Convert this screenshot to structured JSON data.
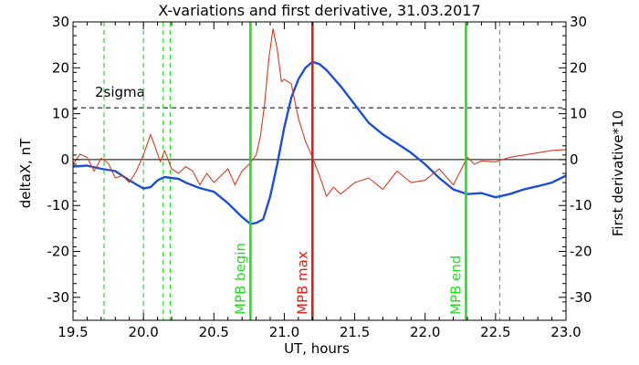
{
  "chart_data": {
    "type": "line",
    "title": "X-variations and first derivative, 31.03.2017",
    "xlabel": "UT, hours",
    "ylabel_left": "deltaX, nT",
    "ylabel_right": "First derivative*10",
    "xlim": [
      19.5,
      23.0
    ],
    "ylim": [
      -35,
      30
    ],
    "x_ticks": [
      19.5,
      20.0,
      20.5,
      21.0,
      21.5,
      22.0,
      22.5,
      23.0
    ],
    "x_tick_labels": [
      "19.5",
      "20.0",
      "20.5",
      "21.0",
      "21.5",
      "22.0",
      "22.5",
      "23.0"
    ],
    "y_ticks": [
      -30,
      -20,
      -10,
      0,
      10,
      20,
      30
    ],
    "y_tick_labels": [
      "-30",
      "-20",
      "-10",
      "0",
      "10",
      "20",
      "30"
    ],
    "grid": false,
    "colors": {
      "deltaX": "#1a4fd6",
      "derivative": "#d63a1f",
      "mpb": "#22dd22",
      "max": "#e02010",
      "left_label": "#1a4fd6",
      "right_label": "#d63a1f"
    },
    "threshold": {
      "value": 11.3,
      "label": "2sigma"
    },
    "zero_line": 0,
    "vertical_markers": [
      {
        "x": 20.76,
        "label": "MPB begin",
        "color": "#22dd22"
      },
      {
        "x": 21.2,
        "label": "MPB max",
        "color": "#e02010"
      },
      {
        "x": 22.29,
        "label": "MPB end",
        "color": "#22dd22"
      }
    ],
    "dashed_markers": [
      19.72,
      20.0,
      20.14,
      20.19,
      22.53
    ],
    "series": [
      {
        "key": "deltaX",
        "x": [
          19.5,
          19.6,
          19.7,
          19.8,
          19.9,
          20.0,
          20.05,
          20.1,
          20.15,
          20.2,
          20.25,
          20.3,
          20.4,
          20.5,
          20.6,
          20.7,
          20.76,
          20.8,
          20.85,
          20.9,
          20.95,
          21.0,
          21.05,
          21.1,
          21.15,
          21.2,
          21.25,
          21.3,
          21.4,
          21.5,
          21.6,
          21.7,
          21.8,
          21.9,
          22.0,
          22.1,
          22.2,
          22.3,
          22.4,
          22.5,
          22.6,
          22.7,
          22.8,
          22.9,
          23.0
        ],
        "values": [
          -1.5,
          -1.3,
          -2.0,
          -2.5,
          -4.5,
          -6.3,
          -6.0,
          -4.5,
          -3.8,
          -4.0,
          -4.2,
          -5.0,
          -6.2,
          -7.0,
          -9.5,
          -12.5,
          -14.0,
          -13.8,
          -13.0,
          -8.0,
          -1.0,
          7.0,
          13.5,
          17.5,
          20.0,
          21.3,
          20.8,
          19.5,
          16.0,
          12.0,
          8.0,
          5.5,
          3.5,
          1.5,
          -1.0,
          -4.0,
          -6.5,
          -7.5,
          -7.3,
          -8.2,
          -7.5,
          -6.5,
          -5.8,
          -5.0,
          -3.5
        ]
      },
      {
        "key": "derivative",
        "x": [
          19.5,
          19.55,
          19.6,
          19.65,
          19.7,
          19.75,
          19.8,
          19.85,
          19.9,
          19.95,
          20.0,
          20.05,
          20.08,
          20.12,
          20.15,
          20.2,
          20.25,
          20.3,
          20.35,
          20.4,
          20.45,
          20.5,
          20.55,
          20.6,
          20.65,
          20.7,
          20.75,
          20.8,
          20.83,
          20.86,
          20.89,
          20.92,
          20.95,
          20.98,
          21.0,
          21.05,
          21.1,
          21.15,
          21.2,
          21.25,
          21.3,
          21.35,
          21.4,
          21.5,
          21.6,
          21.7,
          21.8,
          21.9,
          22.0,
          22.1,
          22.2,
          22.3,
          22.35,
          22.4,
          22.5,
          22.6,
          22.7,
          22.8,
          22.9,
          23.0
        ],
        "values": [
          -1.0,
          1.2,
          0.5,
          -2.5,
          0.3,
          -0.8,
          -4.0,
          -3.5,
          -5.0,
          -2.5,
          1.0,
          5.5,
          3.0,
          -0.5,
          2.0,
          -2.0,
          -3.0,
          -1.5,
          -2.5,
          -5.5,
          -3.0,
          -5.0,
          -3.5,
          -2.0,
          -5.5,
          -2.5,
          -1.0,
          1.0,
          5.0,
          12.0,
          22.0,
          28.5,
          24.0,
          17.0,
          17.5,
          16.5,
          9.0,
          4.0,
          0.5,
          -3.5,
          -8.0,
          -6.0,
          -7.5,
          -5.0,
          -4.0,
          -6.5,
          -2.5,
          -5.0,
          -4.5,
          -2.0,
          -5.5,
          0.5,
          -1.0,
          -0.3,
          -0.5,
          0.5,
          1.0,
          1.5,
          2.0,
          2.2
        ]
      }
    ]
  }
}
